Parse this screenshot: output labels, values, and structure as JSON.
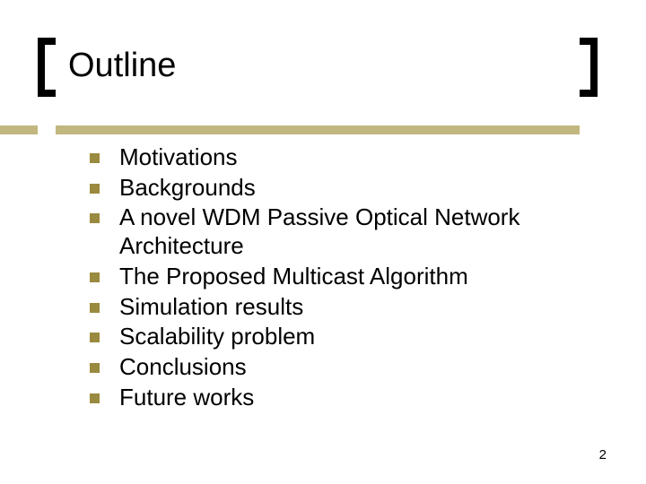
{
  "slide": {
    "title": "Outline",
    "bullets": [
      "Motivations",
      "Backgrounds",
      "A novel WDM Passive Optical Network Architecture",
      "The Proposed Multicast Algorithm",
      "Simulation results",
      "Scalability problem",
      "Conclusions",
      "Future works"
    ],
    "page_number": "2"
  },
  "style": {
    "accent_color": "#c2b77e",
    "bullet_color": "#9a8a3f",
    "bracket_color": "#000000",
    "text_color": "#000000",
    "background_color": "#ffffff",
    "title_fontsize": 38,
    "body_fontsize": 26,
    "pagenum_fontsize": 15
  }
}
